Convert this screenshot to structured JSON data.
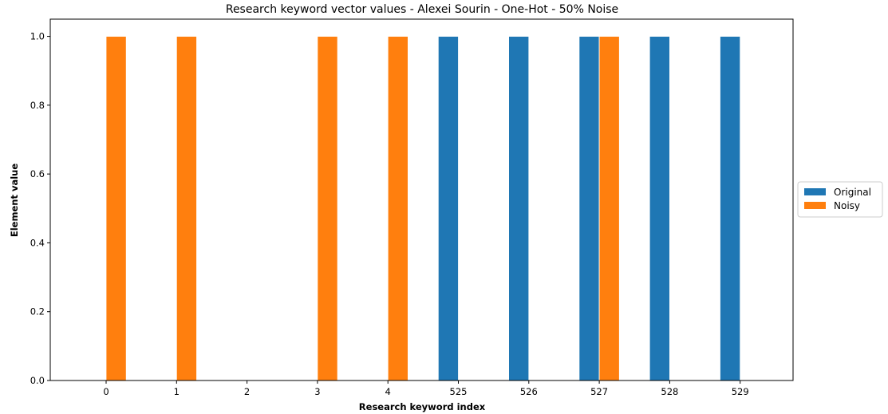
{
  "chart_data": {
    "type": "bar",
    "title": "Research keyword vector values - Alexei Sourin - One-Hot - 50% Noise",
    "xlabel": "Research keyword index",
    "ylabel": "Element value",
    "categories": [
      "0",
      "1",
      "2",
      "3",
      "4",
      "525",
      "526",
      "527",
      "528",
      "529"
    ],
    "series": [
      {
        "name": "Original",
        "color": "#1f77b4",
        "values": [
          0,
          0,
          0,
          0,
          0,
          1,
          1,
          1,
          1,
          1
        ]
      },
      {
        "name": "Noisy",
        "color": "#ff7f0e",
        "values": [
          1,
          1,
          0,
          1,
          1,
          0,
          0,
          1,
          0,
          0
        ]
      }
    ],
    "ylim": [
      0,
      1.05
    ],
    "yticks": [
      "0.0",
      "0.2",
      "0.4",
      "0.6",
      "0.8",
      "1.0"
    ],
    "ytick_values": [
      0,
      0.2,
      0.4,
      0.6,
      0.8,
      1.0
    ],
    "grid": false,
    "legend_position": "right"
  }
}
